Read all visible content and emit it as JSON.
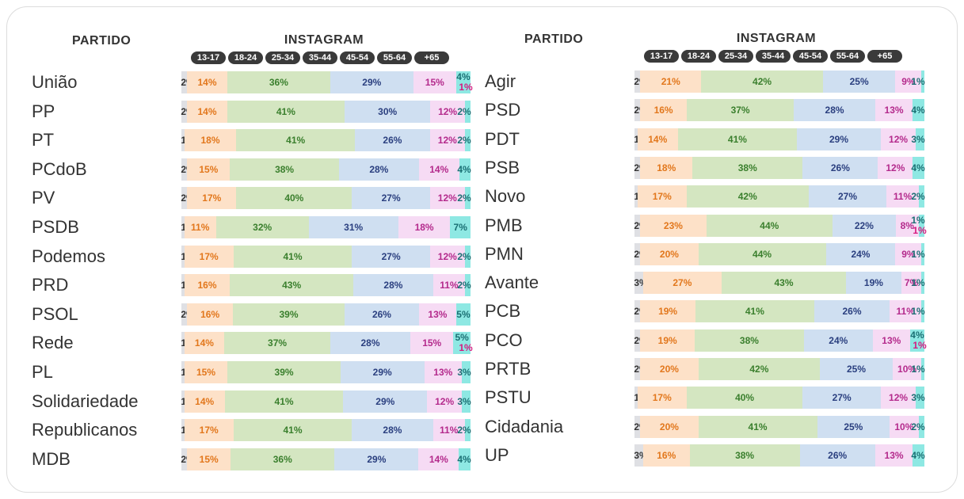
{
  "panels": [
    {
      "header_partido": "PARTIDO",
      "header_instagram": "INSTAGRAM",
      "age_groups": [
        "13-17",
        "18-24",
        "25-34",
        "35-44",
        "45-54",
        "55-64",
        "+65"
      ]
    },
    {
      "header_partido": "PARTIDO",
      "header_instagram": "INSTAGRAM",
      "age_groups": [
        "13-17",
        "18-24",
        "25-34",
        "35-44",
        "45-54",
        "55-64",
        "+65"
      ]
    }
  ],
  "colors": {
    "segment_fills": [
      "#dfe0e4",
      "#fde1c8",
      "#d4e6c1",
      "#cfdff1",
      "#f6dbf4",
      "#8ee8e3"
    ],
    "segment_text": [
      "#333333",
      "#e2771c",
      "#3a7f2d",
      "#2a3f7f",
      "#b42a8c",
      "#1a6f73"
    ],
    "last_text_alt": "#d6197f"
  },
  "chart_data": [
    {
      "type": "bar",
      "orientation": "horizontal-stacked-100",
      "categories": [
        "União",
        "PP",
        "PT",
        "PCdoB",
        "PV",
        "PSDB",
        "Podemos",
        "PRD",
        "PSOL",
        "Rede",
        "PL",
        "Solidariedade",
        "Republicanos",
        "MDB"
      ],
      "series_order": [
        "13-17",
        "18-24",
        "25-34",
        "35-44",
        "45-54",
        "55-64",
        "+65"
      ],
      "rows": [
        {
          "party": "União",
          "values": [
            2,
            14,
            36,
            29,
            15,
            4,
            1
          ],
          "labels": [
            "2%",
            "14%",
            "36%",
            "29%",
            "15%",
            "4%",
            "1%"
          ]
        },
        {
          "party": "PP",
          "values": [
            2,
            14,
            41,
            30,
            12,
            2
          ],
          "labels": [
            "2%",
            "14%",
            "41%",
            "30%",
            "12%",
            "2%"
          ]
        },
        {
          "party": "PT",
          "values": [
            1,
            18,
            41,
            26,
            12,
            2
          ],
          "labels": [
            "1%",
            "18%",
            "41%",
            "26%",
            "12%",
            "2%"
          ]
        },
        {
          "party": "PCdoB",
          "values": [
            2,
            15,
            38,
            28,
            14,
            4
          ],
          "labels": [
            "2%",
            "15%",
            "38%",
            "28%",
            "14%",
            "4%"
          ]
        },
        {
          "party": "PV",
          "values": [
            2,
            17,
            40,
            27,
            12,
            2
          ],
          "labels": [
            "2%",
            "17%",
            "40%",
            "27%",
            "12%",
            "2%"
          ]
        },
        {
          "party": "PSDB",
          "values": [
            1,
            11,
            32,
            31,
            18,
            7
          ],
          "labels": [
            "1%",
            "11%",
            "32%",
            "31%",
            "18%",
            "7%"
          ]
        },
        {
          "party": "Podemos",
          "values": [
            1,
            17,
            41,
            27,
            12,
            2
          ],
          "labels": [
            "1%",
            "17%",
            "41%",
            "27%",
            "12%",
            "2%"
          ]
        },
        {
          "party": "PRD",
          "values": [
            1,
            16,
            43,
            28,
            11,
            2
          ],
          "labels": [
            "1%",
            "16%",
            "43%",
            "28%",
            "11%",
            "2%"
          ]
        },
        {
          "party": "PSOL",
          "values": [
            2,
            16,
            39,
            26,
            13,
            5
          ],
          "labels": [
            "2%",
            "16%",
            "39%",
            "26%",
            "13%",
            "5%"
          ]
        },
        {
          "party": "Rede",
          "values": [
            1,
            14,
            37,
            28,
            15,
            5,
            1
          ],
          "labels": [
            "1%",
            "14%",
            "37%",
            "28%",
            "15%",
            "5%",
            "1%"
          ]
        },
        {
          "party": "PL",
          "values": [
            1,
            15,
            39,
            29,
            13,
            3
          ],
          "labels": [
            "1%",
            "15%",
            "39%",
            "29%",
            "13%",
            "3%"
          ]
        },
        {
          "party": "Solidariedade",
          "values": [
            1,
            14,
            41,
            29,
            12,
            3
          ],
          "labels": [
            "1%",
            "14%",
            "41%",
            "29%",
            "12%",
            "3%"
          ]
        },
        {
          "party": "Republicanos",
          "values": [
            1,
            17,
            41,
            28,
            11,
            2
          ],
          "labels": [
            "1%",
            "17%",
            "41%",
            "28%",
            "11%",
            "2%"
          ]
        },
        {
          "party": "MDB",
          "values": [
            2,
            15,
            36,
            29,
            14,
            4
          ],
          "labels": [
            "2%",
            "15%",
            "36%",
            "29%",
            "14%",
            "4%"
          ]
        }
      ]
    },
    {
      "type": "bar",
      "orientation": "horizontal-stacked-100",
      "categories": [
        "Agir",
        "PSD",
        "PDT",
        "PSB",
        "Novo",
        "PMB",
        "PMN",
        "Avante",
        "PCB",
        "PCO",
        "PRTB",
        "PSTU",
        "Cidadania",
        "UP"
      ],
      "series_order": [
        "13-17",
        "18-24",
        "25-34",
        "35-44",
        "45-54",
        "55-64",
        "+65"
      ],
      "rows": [
        {
          "party": "Agir",
          "values": [
            2,
            21,
            42,
            25,
            9,
            1
          ],
          "labels": [
            "2%",
            "21%",
            "42%",
            "25%",
            "9%",
            "1%"
          ]
        },
        {
          "party": "PSD",
          "values": [
            2,
            16,
            37,
            28,
            13,
            4
          ],
          "labels": [
            "2%",
            "16%",
            "37%",
            "28%",
            "13%",
            "4%"
          ]
        },
        {
          "party": "PDT",
          "values": [
            1,
            14,
            41,
            29,
            12,
            3
          ],
          "labels": [
            "1%",
            "14%",
            "41%",
            "29%",
            "12%",
            "3%"
          ]
        },
        {
          "party": "PSB",
          "values": [
            2,
            18,
            38,
            26,
            12,
            4
          ],
          "labels": [
            "2%",
            "18%",
            "38%",
            "26%",
            "12%",
            "4%"
          ]
        },
        {
          "party": "Novo",
          "values": [
            1,
            17,
            42,
            27,
            11,
            2
          ],
          "labels": [
            "1%",
            "17%",
            "42%",
            "27%",
            "11%",
            "2%"
          ]
        },
        {
          "party": "PMB",
          "values": [
            2,
            23,
            44,
            22,
            8,
            1,
            1
          ],
          "labels": [
            "2%",
            "23%",
            "44%",
            "22%",
            "8%",
            "1%",
            "1%"
          ]
        },
        {
          "party": "PMN",
          "values": [
            2,
            20,
            44,
            24,
            9,
            1
          ],
          "labels": [
            "2%",
            "20%",
            "44%",
            "24%",
            "9%",
            "1%"
          ]
        },
        {
          "party": "Avante",
          "values": [
            3,
            27,
            43,
            19,
            7,
            1
          ],
          "labels": [
            "3%",
            "27%",
            "43%",
            "19%",
            "7%",
            "1%"
          ]
        },
        {
          "party": "PCB",
          "values": [
            2,
            19,
            41,
            26,
            11,
            1
          ],
          "labels": [
            "2%",
            "19%",
            "41%",
            "26%",
            "11%",
            "1%"
          ]
        },
        {
          "party": "PCO",
          "values": [
            2,
            19,
            38,
            24,
            13,
            4,
            1
          ],
          "labels": [
            "2%",
            "19%",
            "38%",
            "24%",
            "13%",
            "4%",
            "1%"
          ]
        },
        {
          "party": "PRTB",
          "values": [
            2,
            20,
            42,
            25,
            10,
            1
          ],
          "labels": [
            "2%",
            "20%",
            "42%",
            "25%",
            "10%",
            "1%"
          ]
        },
        {
          "party": "PSTU",
          "values": [
            1,
            17,
            40,
            27,
            12,
            3
          ],
          "labels": [
            "1%",
            "17%",
            "40%",
            "27%",
            "12%",
            "3%"
          ]
        },
        {
          "party": "Cidadania",
          "values": [
            2,
            20,
            41,
            25,
            10,
            2
          ],
          "labels": [
            "2%",
            "20%",
            "41%",
            "25%",
            "10%",
            "2%"
          ]
        },
        {
          "party": "UP",
          "values": [
            3,
            16,
            38,
            26,
            13,
            4
          ],
          "labels": [
            "3%",
            "16%",
            "38%",
            "26%",
            "13%",
            "4%"
          ]
        }
      ]
    }
  ]
}
